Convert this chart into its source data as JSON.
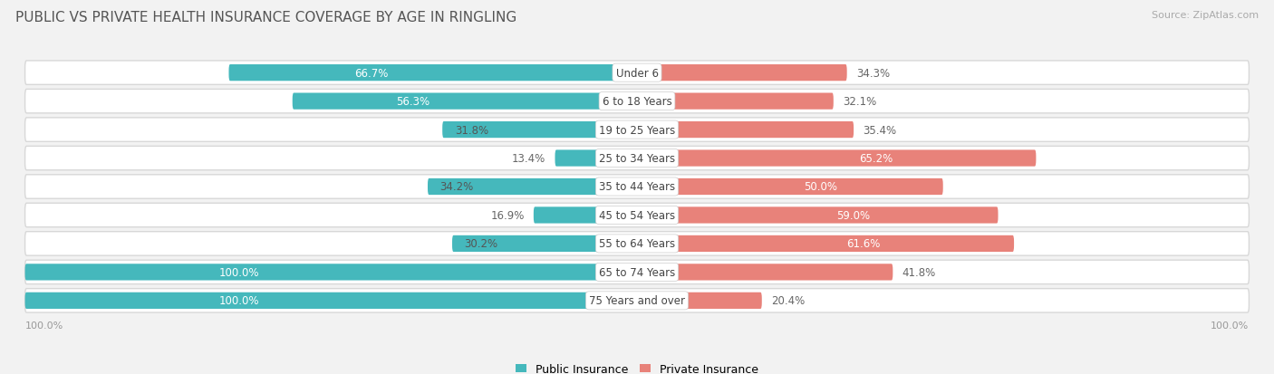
{
  "title": "PUBLIC VS PRIVATE HEALTH INSURANCE COVERAGE BY AGE IN RINGLING",
  "source": "Source: ZipAtlas.com",
  "categories": [
    "Under 6",
    "6 to 18 Years",
    "19 to 25 Years",
    "25 to 34 Years",
    "35 to 44 Years",
    "45 to 54 Years",
    "55 to 64 Years",
    "65 to 74 Years",
    "75 Years and over"
  ],
  "public_values": [
    66.7,
    56.3,
    31.8,
    13.4,
    34.2,
    16.9,
    30.2,
    100.0,
    100.0
  ],
  "private_values": [
    34.3,
    32.1,
    35.4,
    65.2,
    50.0,
    59.0,
    61.6,
    41.8,
    20.4
  ],
  "public_color": "#45b8bc",
  "private_color": "#e8827a",
  "public_label": "Public Insurance",
  "private_label": "Private Insurance",
  "background_color": "#f2f2f2",
  "row_bg_color": "#e8e8e8",
  "bar_bg_light": "#f7f7f7",
  "title_fontsize": 11,
  "source_fontsize": 8,
  "value_fontsize": 8.5,
  "category_fontsize": 8.5
}
